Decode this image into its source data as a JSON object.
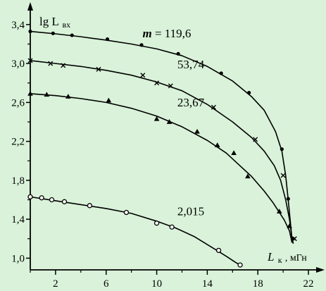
{
  "chart_data": {
    "type": "scatter",
    "title": "",
    "xlabel": "L",
    "xlabel_sub": "к",
    "xlabel_unit": ", мГн",
    "ylabel": "lg L",
    "ylabel_sub": "вх",
    "xlim": [
      0,
      23
    ],
    "ylim": [
      0.88,
      3.58
    ],
    "x_ticks": [
      2,
      6,
      10,
      14,
      18,
      22
    ],
    "x_tick_labels": [
      "2",
      "6",
      "10",
      "14",
      "18",
      "22"
    ],
    "x_minor_ticks": [
      0,
      4,
      8,
      12,
      16,
      20
    ],
    "y_ticks": [
      1.0,
      1.4,
      1.8,
      2.2,
      2.6,
      3.0,
      3.4
    ],
    "y_tick_labels": [
      "1,0",
      "1,4",
      "1,8",
      "2,2",
      "2,6",
      "3,0",
      "3,4"
    ],
    "y_minor_ticks": [
      1.2,
      1.6,
      2.0,
      2.4,
      2.8,
      3.2
    ],
    "grid": false,
    "legend": "none",
    "annotations": [
      {
        "label": "m",
        "eq": " = ",
        "value": "119,6",
        "at": [
          10.8,
          3.27
        ]
      },
      {
        "value": "53,74",
        "at": [
          12.7,
          2.95
        ]
      },
      {
        "value": "23,67",
        "at": [
          12.7,
          2.56
        ]
      },
      {
        "value": "2,015",
        "at": [
          12.7,
          1.44
        ]
      }
    ],
    "series": [
      {
        "m": "119,6",
        "marker": "dot",
        "points": [
          [
            0.0,
            3.33
          ],
          [
            1.8,
            3.31
          ],
          [
            3.3,
            3.29
          ],
          [
            6.1,
            3.25
          ],
          [
            8.8,
            3.19
          ],
          [
            11.7,
            3.1
          ],
          [
            15.1,
            2.9
          ],
          [
            17.3,
            2.7
          ],
          [
            19.9,
            2.12
          ],
          [
            20.4,
            1.61
          ],
          [
            20.8,
            1.2
          ]
        ],
        "curve": [
          [
            0.0,
            3.33
          ],
          [
            2,
            3.305
          ],
          [
            4,
            3.275
          ],
          [
            6,
            3.24
          ],
          [
            8,
            3.2
          ],
          [
            10,
            3.15
          ],
          [
            12,
            3.08
          ],
          [
            14,
            2.97
          ],
          [
            16,
            2.82
          ],
          [
            17.5,
            2.66
          ],
          [
            18.5,
            2.52
          ],
          [
            19.4,
            2.3
          ],
          [
            19.9,
            2.1
          ],
          [
            20.2,
            1.85
          ],
          [
            20.4,
            1.6
          ],
          [
            20.55,
            1.4
          ],
          [
            20.7,
            1.2
          ],
          [
            20.8,
            1.15
          ]
        ]
      },
      {
        "m": "53,74",
        "marker": "cross",
        "points": [
          [
            0.0,
            3.03
          ],
          [
            1.6,
            3.0
          ],
          [
            2.6,
            2.98
          ],
          [
            5.4,
            2.94
          ],
          [
            8.9,
            2.88
          ],
          [
            10.0,
            2.8
          ],
          [
            11.1,
            2.77
          ],
          [
            14.5,
            2.55
          ],
          [
            17.8,
            2.22
          ],
          [
            20.0,
            1.85
          ],
          [
            20.9,
            1.2
          ]
        ],
        "curve": [
          [
            0.0,
            3.03
          ],
          [
            2,
            3.0
          ],
          [
            4,
            2.97
          ],
          [
            6,
            2.93
          ],
          [
            8,
            2.88
          ],
          [
            10,
            2.81
          ],
          [
            12,
            2.72
          ],
          [
            14,
            2.58
          ],
          [
            16,
            2.4
          ],
          [
            17.5,
            2.24
          ],
          [
            18.5,
            2.1
          ],
          [
            19.3,
            1.95
          ],
          [
            19.8,
            1.8
          ],
          [
            20.2,
            1.6
          ],
          [
            20.5,
            1.4
          ],
          [
            20.7,
            1.2
          ],
          [
            20.8,
            1.15
          ]
        ]
      },
      {
        "m": "23,67",
        "marker": "triangle",
        "points": [
          [
            0.0,
            2.69
          ],
          [
            1.3,
            2.68
          ],
          [
            3.0,
            2.66
          ],
          [
            6.2,
            2.62
          ],
          [
            10.0,
            2.43
          ],
          [
            11.0,
            2.4
          ],
          [
            13.2,
            2.3
          ],
          [
            14.8,
            2.16
          ],
          [
            16.1,
            2.08
          ],
          [
            17.2,
            1.84
          ],
          [
            19.7,
            1.48
          ],
          [
            20.5,
            1.33
          ]
        ],
        "curve": [
          [
            0.0,
            2.69
          ],
          [
            2,
            2.67
          ],
          [
            4,
            2.64
          ],
          [
            6,
            2.6
          ],
          [
            8,
            2.54
          ],
          [
            10,
            2.46
          ],
          [
            12,
            2.35
          ],
          [
            14,
            2.21
          ],
          [
            15.5,
            2.08
          ],
          [
            16.5,
            1.96
          ],
          [
            17.5,
            1.84
          ],
          [
            18.5,
            1.69
          ],
          [
            19.2,
            1.57
          ],
          [
            19.7,
            1.47
          ],
          [
            20.1,
            1.39
          ],
          [
            20.5,
            1.28
          ],
          [
            20.7,
            1.16
          ]
        ]
      },
      {
        "m": "2,015",
        "marker": "circle",
        "points": [
          [
            0.0,
            1.63
          ],
          [
            0.9,
            1.62
          ],
          [
            1.7,
            1.6
          ],
          [
            2.7,
            1.58
          ],
          [
            4.7,
            1.54
          ],
          [
            7.6,
            1.47
          ],
          [
            10.0,
            1.36
          ],
          [
            11.2,
            1.32
          ],
          [
            14.9,
            1.08
          ],
          [
            16.6,
            0.93
          ]
        ],
        "curve": [
          [
            0.0,
            1.63
          ],
          [
            2,
            1.59
          ],
          [
            4,
            1.55
          ],
          [
            6,
            1.51
          ],
          [
            8,
            1.46
          ],
          [
            10,
            1.38
          ],
          [
            11.5,
            1.31
          ],
          [
            13,
            1.22
          ],
          [
            14.5,
            1.1
          ],
          [
            15.5,
            1.02
          ],
          [
            16.2,
            0.96
          ],
          [
            16.7,
            0.92
          ]
        ]
      }
    ]
  }
}
